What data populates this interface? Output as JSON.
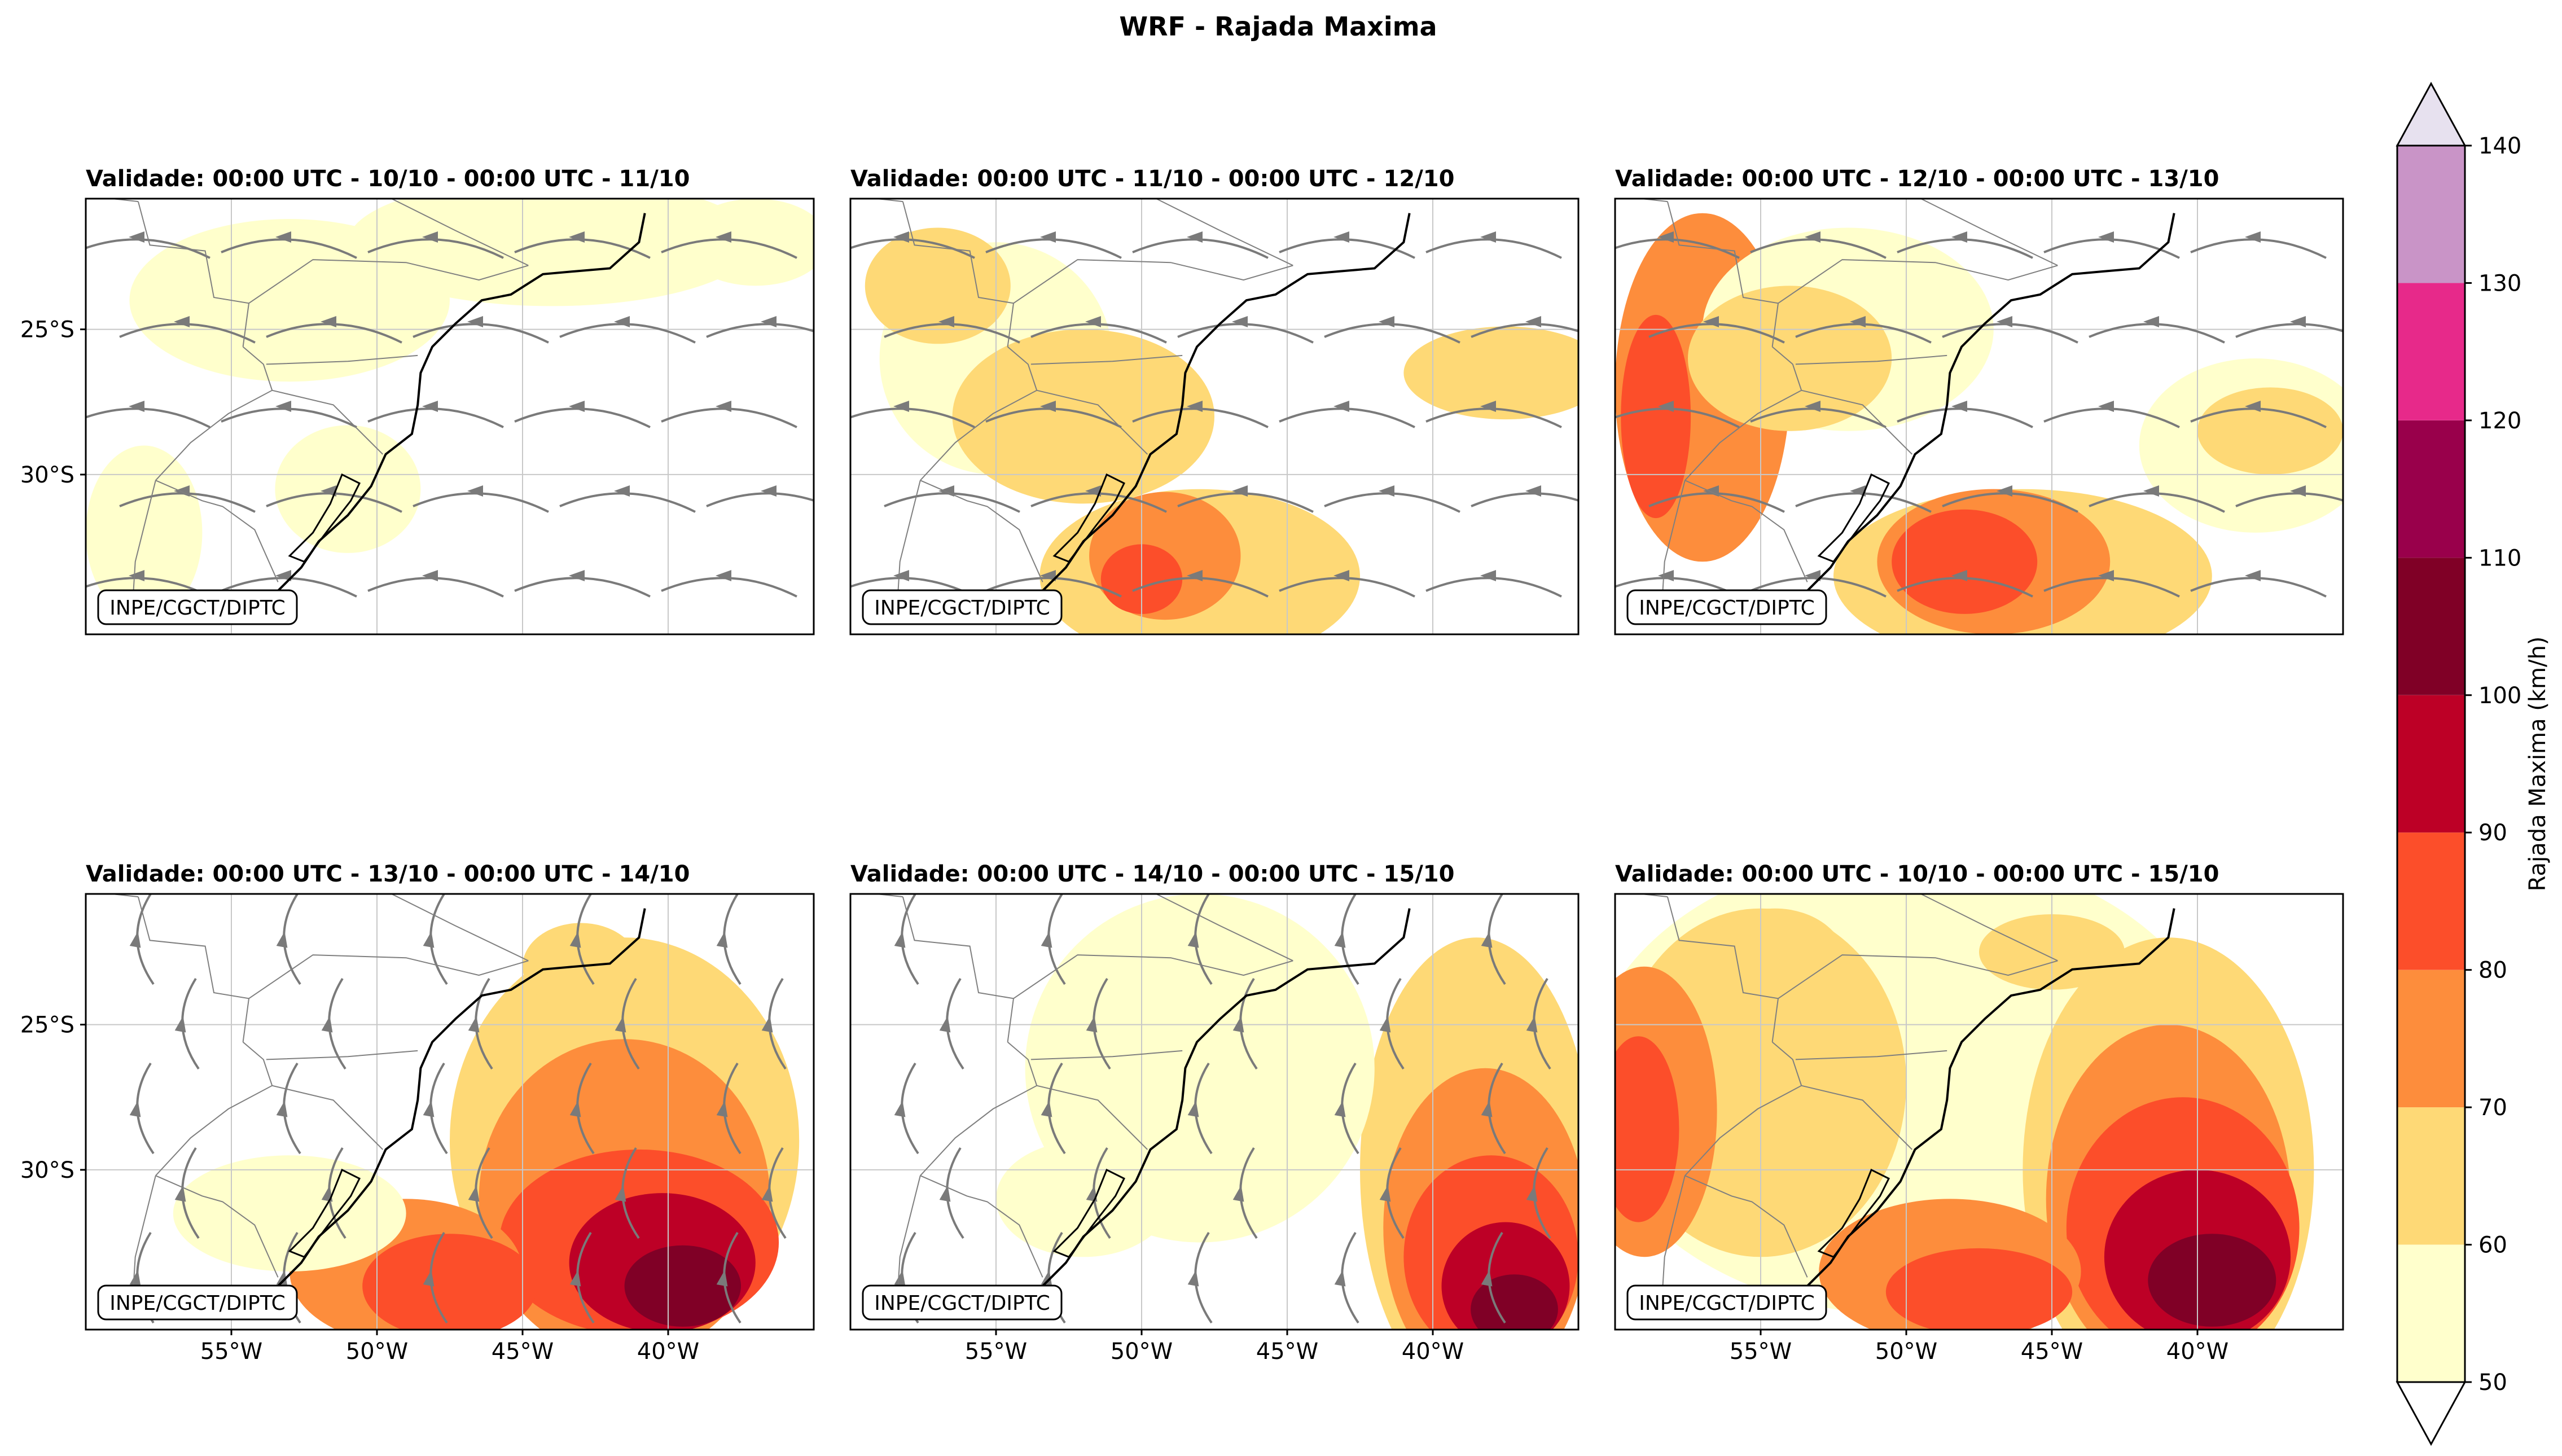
{
  "chart_data": {
    "type": "heatmap",
    "title": "WRF - Rajada Maxima",
    "colorbar": {
      "label": "Rajada Maxima (km/h)",
      "levels": [
        50,
        60,
        70,
        80,
        90,
        100,
        110,
        120,
        130,
        140
      ],
      "colors": [
        "#ffffcc",
        "#fed976",
        "#fd8d3c",
        "#fc4e2a",
        "#bd0026",
        "#800026",
        "#99004b",
        "#e7298a",
        "#c994c7",
        "#e7e1ef"
      ],
      "extend": "both",
      "over_color": "#e7e1ef",
      "under_color": "#ffffff"
    },
    "credit": "INPE/CGCT/DIPTC",
    "lon_ticks": [
      -55,
      -50,
      -45,
      -40
    ],
    "lon_tick_labels": [
      "55°W",
      "50°W",
      "45°W",
      "40°W"
    ],
    "lat_ticks": [
      -25,
      -30
    ],
    "lat_tick_labels": [
      "25°S",
      "30°S"
    ],
    "panels": [
      {
        "title": "Validade: 00:00 UTC - 10/10 - 00:00 UTC - 11/10",
        "max_gust": 60,
        "flow": "easterly"
      },
      {
        "title": "Validade: 00:00 UTC - 11/10 - 00:00 UTC - 12/10",
        "max_gust": 80,
        "flow": "easterly"
      },
      {
        "title": "Validade: 00:00 UTC - 12/10 - 00:00 UTC - 13/10",
        "max_gust": 80,
        "flow": "easterly"
      },
      {
        "title": "Validade: 00:00 UTC - 13/10 - 00:00 UTC - 14/10",
        "max_gust": 100,
        "flow": "southerly"
      },
      {
        "title": "Validade: 00:00 UTC - 14/10 - 00:00 UTC - 15/10",
        "max_gust": 100,
        "flow": "southerly"
      },
      {
        "title": "Validade: 00:00 UTC - 10/10 - 00:00 UTC - 15/10",
        "max_gust": 100,
        "flow": "none"
      }
    ]
  }
}
